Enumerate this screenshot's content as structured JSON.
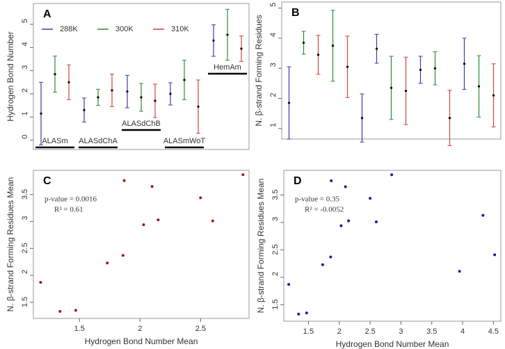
{
  "chart_data": [
    {
      "type": "errorbar",
      "label": "A",
      "y_label": "Hydrogen Bond Number",
      "categories": [
        "ALASm",
        "ALASdChA",
        "ALASdChB",
        "ALASmWoT",
        "HemAm"
      ],
      "series": [
        {
          "name": "288K",
          "color": "#3b3bb0",
          "values": [
            1.15,
            1.3,
            2.1,
            2.0,
            4.3
          ],
          "errors": [
            1.35,
            0.52,
            0.7,
            0.48,
            0.68
          ]
        },
        {
          "name": "300K",
          "color": "#2e8b2e",
          "values": [
            2.85,
            1.85,
            1.85,
            2.6,
            4.55
          ],
          "errors": [
            0.78,
            0.35,
            0.6,
            0.85,
            1.1
          ]
        },
        {
          "name": "310K",
          "color": "#d24040",
          "values": [
            2.5,
            2.15,
            1.7,
            1.45,
            3.95
          ],
          "errors": [
            0.75,
            0.7,
            0.72,
            1.15,
            0.55
          ]
        }
      ],
      "ylim": [
        -0.4,
        5.9
      ],
      "yticks": [
        0,
        1,
        2,
        3,
        4,
        5
      ],
      "legend": "top"
    },
    {
      "type": "errorbar",
      "label": "B",
      "y_label": "N. β-strand Forming Residues",
      "categories": [
        null,
        null,
        null,
        null,
        null,
        null,
        null,
        null,
        null,
        null,
        null,
        null,
        null,
        null,
        null
      ],
      "series": [
        {
          "values": [
            1.85,
            3.85,
            3.45,
            3.75,
            3.05,
            1.35,
            3.65,
            2.35,
            2.25,
            2.95,
            3.0,
            1.35,
            3.15,
            2.4,
            2.1
          ],
          "errors": [
            1.2,
            0.38,
            0.65,
            1.18,
            1.02,
            0.8,
            0.48,
            1.05,
            1.12,
            0.45,
            0.55,
            0.92,
            0.85,
            1.02,
            1.05
          ],
          "colors": [
            "#3b3bb0",
            "#2e8b2e",
            "#d24040",
            "#2e8b2e",
            "#d24040",
            "#3b3bb0",
            "#3b3bb0",
            "#2e8b2e",
            "#d24040",
            "#3b3bb0",
            "#2e8b2e",
            "#d24040",
            "#3b3bb0",
            "#2e8b2e",
            "#d24040"
          ]
        }
      ],
      "ylim": [
        0.65,
        5.2
      ],
      "yticks": [
        1,
        2,
        3,
        4,
        5
      ]
    },
    {
      "type": "scatter",
      "label": "C",
      "x_label": "Hydrogen Bond Number Mean",
      "y_label": "N. β-strand Forming Residues Mean",
      "annotations": [
        "p-value = 0.0016",
        "R² = 0.61"
      ],
      "color": "#9b1b1b",
      "x": [
        1.18,
        1.34,
        1.47,
        1.73,
        1.86,
        1.87,
        2.03,
        2.1,
        2.15,
        2.5,
        2.6,
        2.85
      ],
      "y": [
        1.87,
        1.33,
        1.35,
        2.23,
        2.37,
        3.76,
        2.94,
        3.65,
        3.03,
        3.44,
        3.01,
        3.87
      ],
      "xlim": [
        1.12,
        2.9
      ],
      "xticks": [
        1.5,
        2.0,
        2.5
      ],
      "ylim": [
        1.2,
        3.95
      ],
      "yticks": [
        1.5,
        2.0,
        2.5,
        3.0,
        3.5
      ]
    },
    {
      "type": "scatter",
      "label": "D",
      "x_label": "Hydrogen Bond Number Mean",
      "y_label": "N. β-strand Forming Residues Mean",
      "annotations": [
        "p-value = 0.35",
        "R² = -0.0052"
      ],
      "color": "#1a1a9b",
      "x": [
        1.18,
        1.34,
        1.47,
        1.73,
        1.86,
        1.87,
        2.03,
        2.1,
        2.15,
        2.5,
        2.6,
        2.85,
        3.95,
        4.33,
        4.52
      ],
      "y": [
        1.87,
        1.33,
        1.35,
        2.23,
        2.37,
        3.76,
        2.94,
        3.65,
        3.03,
        3.44,
        3.01,
        3.87,
        2.11,
        3.13,
        2.41
      ],
      "xlim": [
        1.1,
        4.62
      ],
      "xticks": [
        1.5,
        2.0,
        2.5,
        3.0,
        3.5,
        4.0,
        4.5
      ],
      "ylim": [
        1.2,
        3.95
      ],
      "yticks": [
        1.5,
        2.0,
        2.5,
        3.0,
        3.5
      ]
    }
  ]
}
